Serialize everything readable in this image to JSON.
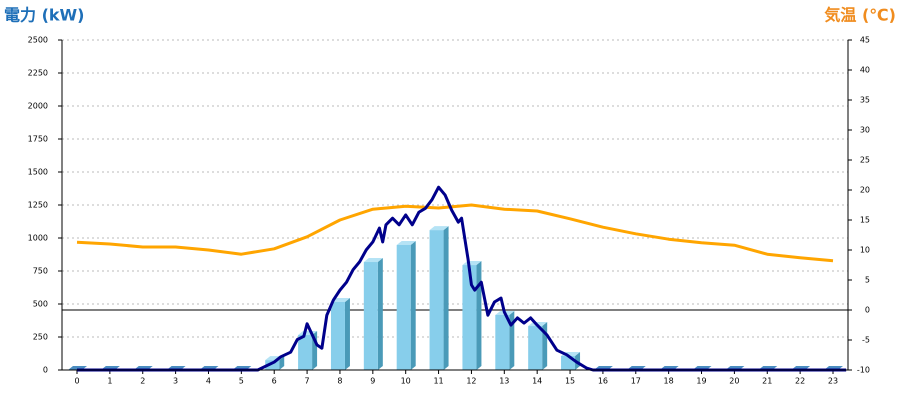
{
  "chart_data": {
    "type": "bar",
    "y_label": "電力 (kW)",
    "y2_label": "気温 (℃)",
    "categories": [
      "0",
      "1",
      "2",
      "3",
      "4",
      "5",
      "6",
      "7",
      "8",
      "9",
      "10",
      "11",
      "12",
      "13",
      "14",
      "15",
      "16",
      "17",
      "18",
      "19",
      "20",
      "21",
      "22",
      "23"
    ],
    "ylim": [
      0,
      2500
    ],
    "yticks": [
      0,
      250,
      500,
      750,
      1000,
      1250,
      1500,
      1750,
      2000,
      2250,
      2500
    ],
    "y2lim": [
      -10,
      45
    ],
    "y2ticks": [
      -10,
      -5,
      0,
      5,
      10,
      15,
      20,
      25,
      30,
      35,
      40,
      45
    ],
    "y2_reference_line": 0,
    "grid": true,
    "series": [
      {
        "type": "bar",
        "color": "#87ceeb",
        "values": [
          0,
          0,
          0,
          0,
          0,
          0,
          75,
          265,
          515,
          818,
          947,
          1060,
          795,
          417,
          333,
          106,
          0,
          0,
          0,
          0,
          0,
          0,
          0,
          0
        ]
      },
      {
        "type": "line",
        "color": "#00008b",
        "x": [
          0,
          5.5,
          6.0,
          6.2,
          6.5,
          6.7,
          6.9,
          7.0,
          7.3,
          7.45,
          7.6,
          7.8,
          8.0,
          8.2,
          8.4,
          8.6,
          8.8,
          9.0,
          9.2,
          9.3,
          9.4,
          9.6,
          9.8,
          10.0,
          10.2,
          10.4,
          10.6,
          10.8,
          11.0,
          11.2,
          11.4,
          11.6,
          11.7,
          11.9,
          12.0,
          12.1,
          12.3,
          12.5,
          12.7,
          12.9,
          13.0,
          13.2,
          13.4,
          13.6,
          13.8,
          14.0,
          14.3,
          14.6,
          14.9,
          15.2,
          15.5,
          15.7,
          23.4
        ],
        "values": [
          0,
          0,
          60,
          100,
          135,
          230,
          255,
          350,
          190,
          165,
          415,
          530,
          605,
          665,
          760,
          820,
          910,
          970,
          1075,
          970,
          1100,
          1150,
          1100,
          1175,
          1100,
          1195,
          1225,
          1290,
          1385,
          1325,
          1210,
          1120,
          1150,
          835,
          645,
          605,
          665,
          415,
          515,
          545,
          440,
          340,
          395,
          355,
          395,
          340,
          265,
          150,
          115,
          60,
          15,
          0,
          0
        ]
      },
      {
        "type": "line",
        "axis": "y2",
        "color": "#ffa500",
        "values": [
          11.3,
          11.0,
          10.5,
          10.5,
          10.0,
          9.3,
          10.2,
          12.2,
          15.0,
          16.8,
          17.3,
          17.0,
          17.5,
          16.8,
          16.5,
          15.2,
          13.8,
          12.7,
          11.8,
          11.2,
          10.8,
          9.3,
          8.7,
          8.2
        ]
      }
    ]
  }
}
